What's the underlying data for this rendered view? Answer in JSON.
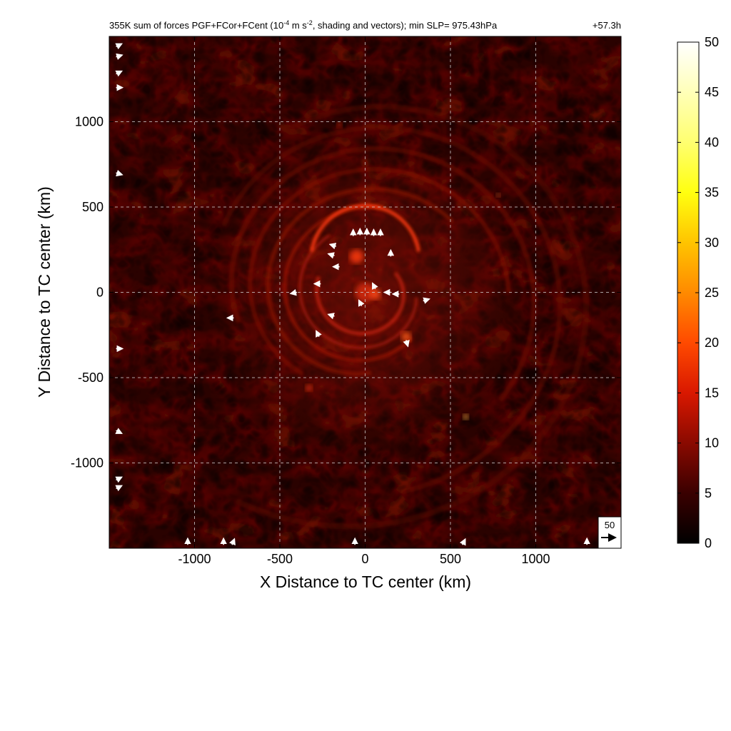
{
  "chart_data": {
    "type": "heatmap",
    "title": "355K sum of forces PGF+FCor+FCent (10",
    "title_sup": "-4",
    "title_mid": " m s",
    "title_sup2": "-2",
    "title_end": ", shading and vectors); min SLP= 975.43hPa",
    "time_label": "+57.3h",
    "xlabel": "X Distance to TC center (km)",
    "ylabel": "Y Distance to TC center (km)",
    "xlim": [
      -1500,
      1500
    ],
    "ylim": [
      -1500,
      1500
    ],
    "x_ticks": [
      -1000,
      -500,
      0,
      500,
      1000
    ],
    "y_ticks": [
      -1000,
      -500,
      0,
      500,
      1000
    ],
    "x_tick_labels": [
      "-1000",
      "-500",
      "0",
      "500",
      "1000"
    ],
    "y_tick_labels": [
      "-1000",
      "-500",
      "0",
      "500",
      "1000"
    ],
    "grid": true,
    "colorbar": {
      "min": 0,
      "max": 50,
      "ticks": [
        0,
        5,
        10,
        15,
        20,
        25,
        30,
        35,
        40,
        45,
        50
      ],
      "tick_labels": [
        "0",
        "5",
        "10",
        "15",
        "20",
        "25",
        "30",
        "35",
        "40",
        "45",
        "50"
      ],
      "colormap": "hot"
    },
    "reference_vector": {
      "label": "50",
      "value": 50
    },
    "field_description_values": {
      "background_range": [
        0,
        10
      ],
      "eyewall_max": 25
    },
    "vectors": [
      {
        "x": -70,
        "y": 330,
        "u": 0,
        "v": 1
      },
      {
        "x": -30,
        "y": 335,
        "u": 0,
        "v": 1
      },
      {
        "x": 10,
        "y": 335,
        "u": 0,
        "v": 1
      },
      {
        "x": 50,
        "y": 330,
        "u": 0,
        "v": 1
      },
      {
        "x": 90,
        "y": 330,
        "u": 0,
        "v": 1
      },
      {
        "x": -170,
        "y": 270,
        "u": -1,
        "v": 0.3
      },
      {
        "x": -180,
        "y": 215,
        "u": -1,
        "v": 0.3
      },
      {
        "x": -150,
        "y": 150,
        "u": -1,
        "v": 0
      },
      {
        "x": -260,
        "y": 50,
        "u": -1,
        "v": 0
      },
      {
        "x": -400,
        "y": 0,
        "u": -1,
        "v": -0.2
      },
      {
        "x": 150,
        "y": 210,
        "u": 0,
        "v": 1
      },
      {
        "x": 60,
        "y": 20,
        "u": -0.5,
        "v": 1
      },
      {
        "x": 150,
        "y": 0,
        "u": -1,
        "v": 0
      },
      {
        "x": 200,
        "y": -10,
        "u": -1,
        "v": 0
      },
      {
        "x": -20,
        "y": -80,
        "u": -0.5,
        "v": 1
      },
      {
        "x": -180,
        "y": -140,
        "u": -1,
        "v": 0.3
      },
      {
        "x": -270,
        "y": -260,
        "u": -0.5,
        "v": 1
      },
      {
        "x": 240,
        "y": -280,
        "u": 0.3,
        "v": -1
      },
      {
        "x": 340,
        "y": -50,
        "u": 1,
        "v": 0.3
      },
      {
        "x": -770,
        "y": -150,
        "u": -1,
        "v": 0
      },
      {
        "x": -60,
        "y": -1480,
        "u": 0,
        "v": 1
      },
      {
        "x": -1460,
        "y": 1440,
        "u": 1,
        "v": 0.5
      },
      {
        "x": -1460,
        "y": 1380,
        "u": 1,
        "v": 0.3
      },
      {
        "x": -1460,
        "y": 1280,
        "u": 1,
        "v": 0.5
      },
      {
        "x": -1460,
        "y": 1200,
        "u": 1,
        "v": 0
      },
      {
        "x": -1460,
        "y": 700,
        "u": 1,
        "v": -0.3
      },
      {
        "x": -1460,
        "y": -330,
        "u": 1,
        "v": 0
      },
      {
        "x": -1460,
        "y": -810,
        "u": 1,
        "v": -0.5
      },
      {
        "x": -1460,
        "y": -1100,
        "u": 1,
        "v": 0.5
      },
      {
        "x": -1460,
        "y": -1150,
        "u": 1,
        "v": 0.5
      },
      {
        "x": -1040,
        "y": -1480,
        "u": 0,
        "v": 1
      },
      {
        "x": -830,
        "y": -1480,
        "u": 0,
        "v": 1
      },
      {
        "x": -780,
        "y": -1480,
        "u": 0.4,
        "v": 1
      },
      {
        "x": 570,
        "y": -1480,
        "u": 0.5,
        "v": 1
      },
      {
        "x": 1300,
        "y": -1480,
        "u": 0,
        "v": 1
      }
    ]
  }
}
